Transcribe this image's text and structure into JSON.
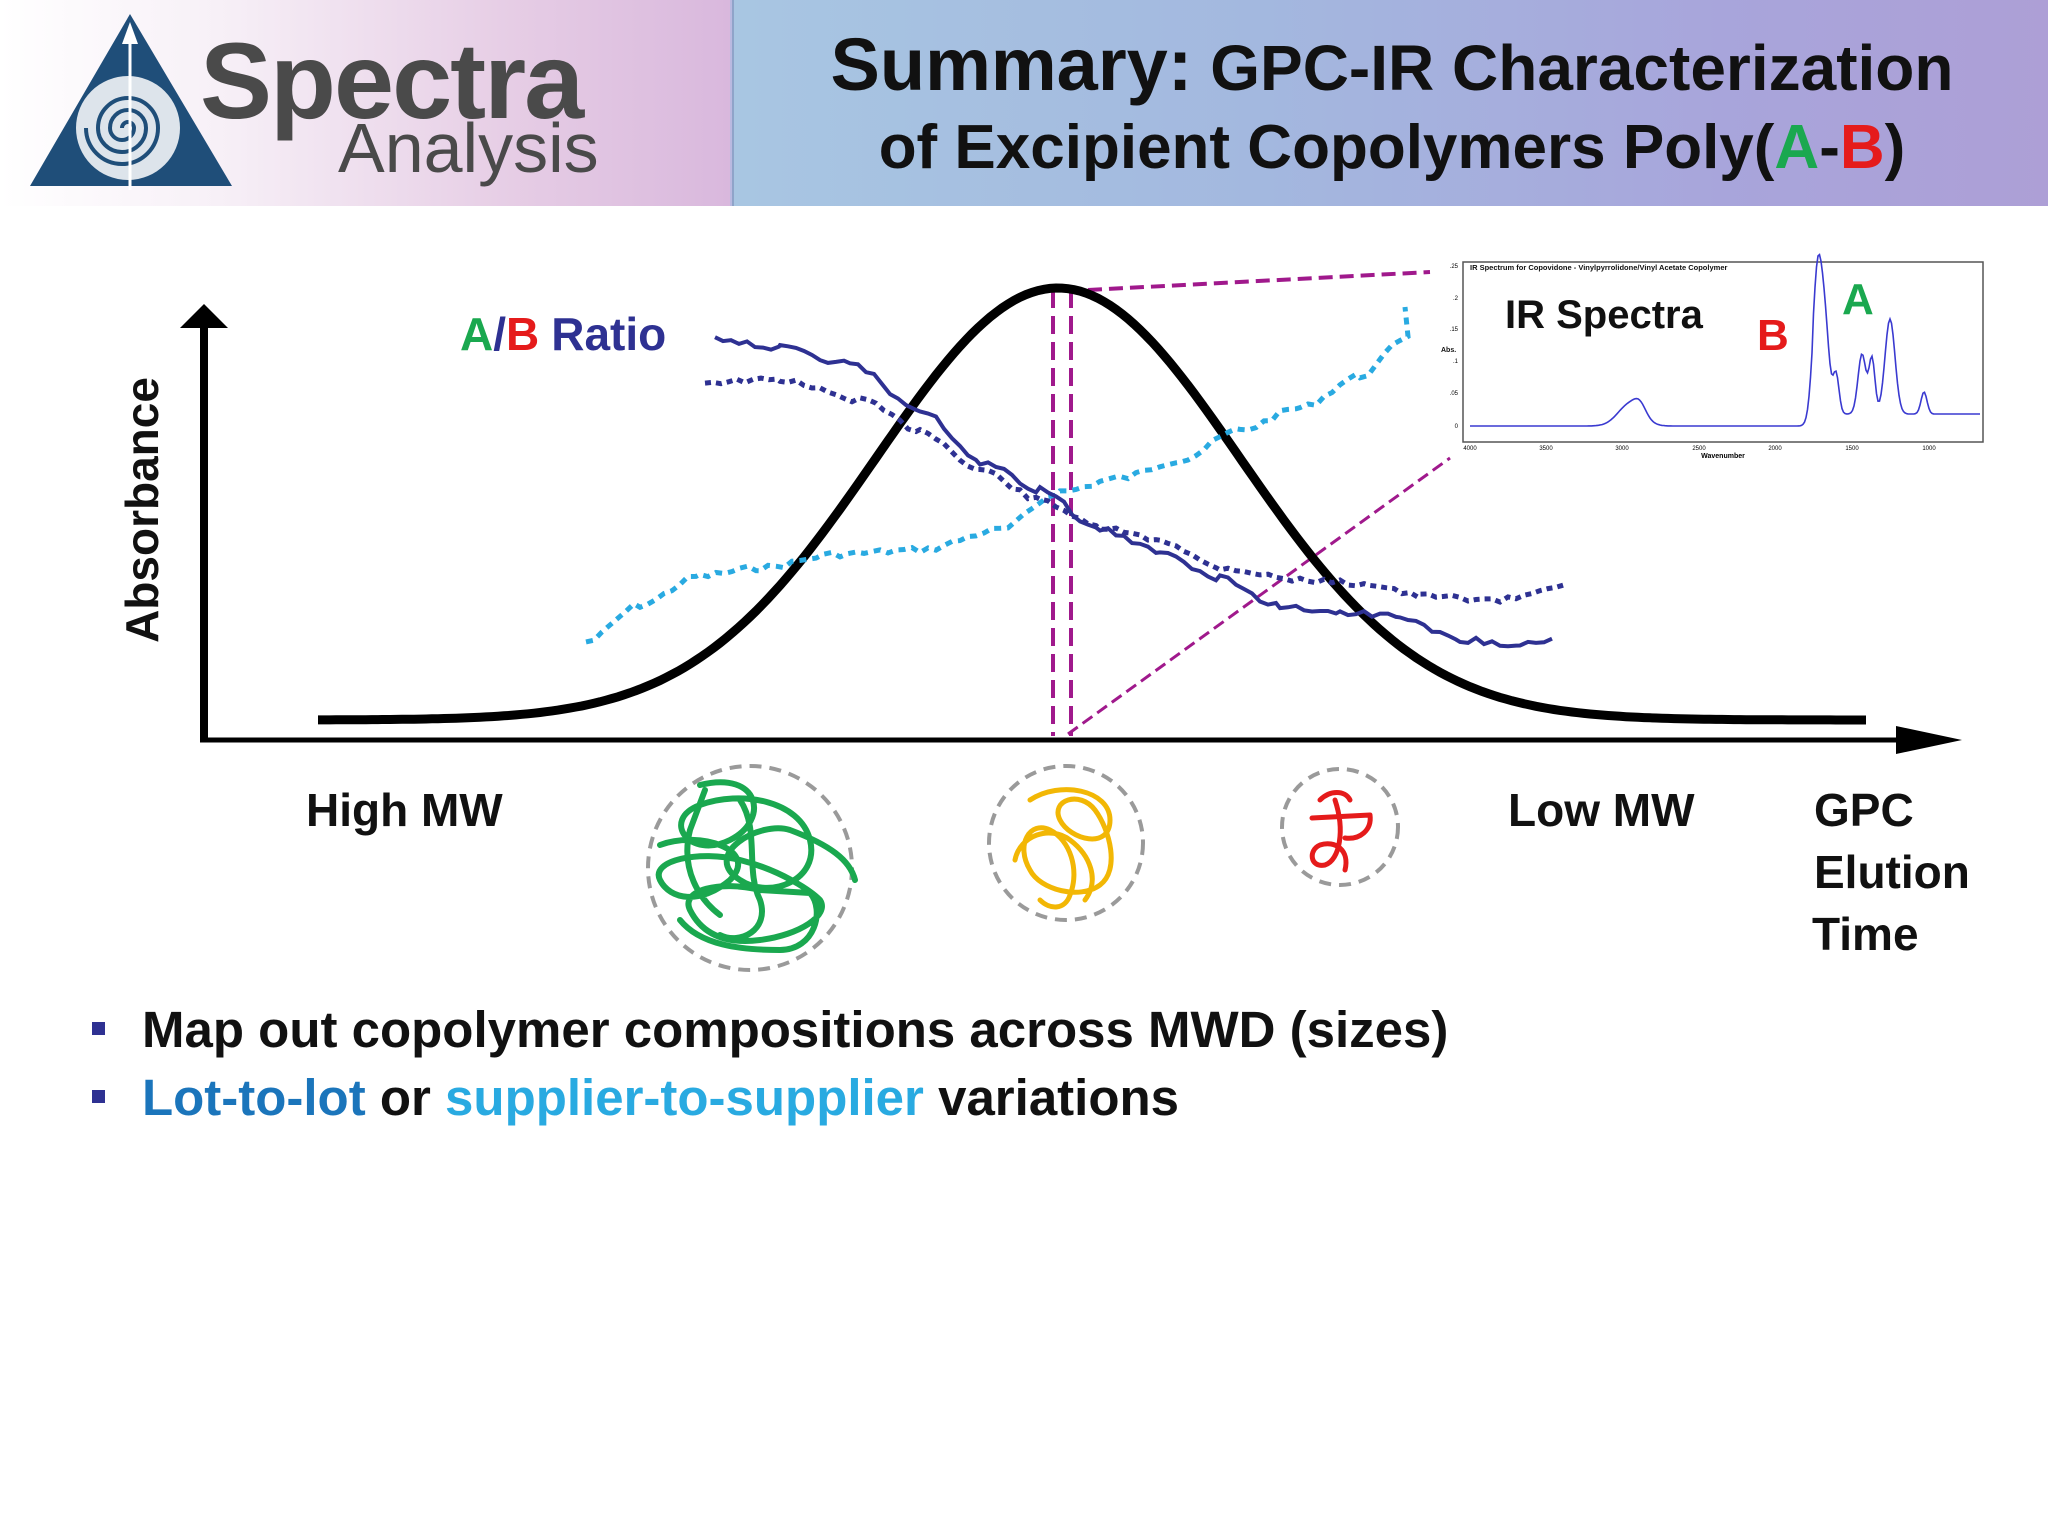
{
  "logo": {
    "word_1": "Spectra",
    "word_2": "Analysis",
    "icon": "spiral-triangle-icon"
  },
  "title": {
    "prefix": "Summary:",
    "line_1_rest": "GPC-IR Characterization",
    "line_2_start": "of Excipient Copolymers Poly(",
    "a": "A",
    "dash": "-",
    "b": "B",
    "close": ")"
  },
  "diagram": {
    "y_axis_label": "Absorbance",
    "ratio_label": {
      "a": "A",
      "slash": "/",
      "b": "B",
      "rest": "Ratio"
    },
    "high_mw": "High MW",
    "low_mw": "Low MW",
    "x_axis_label": [
      "GPC",
      "Elution",
      "Time"
    ],
    "ir_label": "IR Spectra",
    "ir_peak_b": "B",
    "ir_peak_a": "A",
    "inset": {
      "title": "IR Spectrum for Copovidone - Vinylpyrrolidone/Vinyl Acetate Copolymer",
      "ylabel": "Abs.",
      "xlabel": "Wavenumber",
      "yticks": [
        ".25",
        ".2",
        ".15",
        ".1",
        ".05",
        "0"
      ],
      "xticks": [
        "4000",
        "3500",
        "3000",
        "2500",
        "2000",
        "1500",
        "1000"
      ]
    },
    "colors": {
      "a": "#1aa84f",
      "b": "#e51b1b",
      "ratio_curve": "#2e3192",
      "cyan_curve": "#29aae1",
      "slice": "#a0198c",
      "coil_large": "#1aa84f",
      "coil_medium": "#f2b705",
      "coil_small": "#e51b1b"
    }
  },
  "bullets": {
    "item_1": "Map out copolymer compositions across MWD (sizes)",
    "item_2": {
      "part_1": "Lot-to-lot",
      "part_2": " or ",
      "part_3": "supplier-to-supplier",
      "part_4": " variations"
    }
  }
}
